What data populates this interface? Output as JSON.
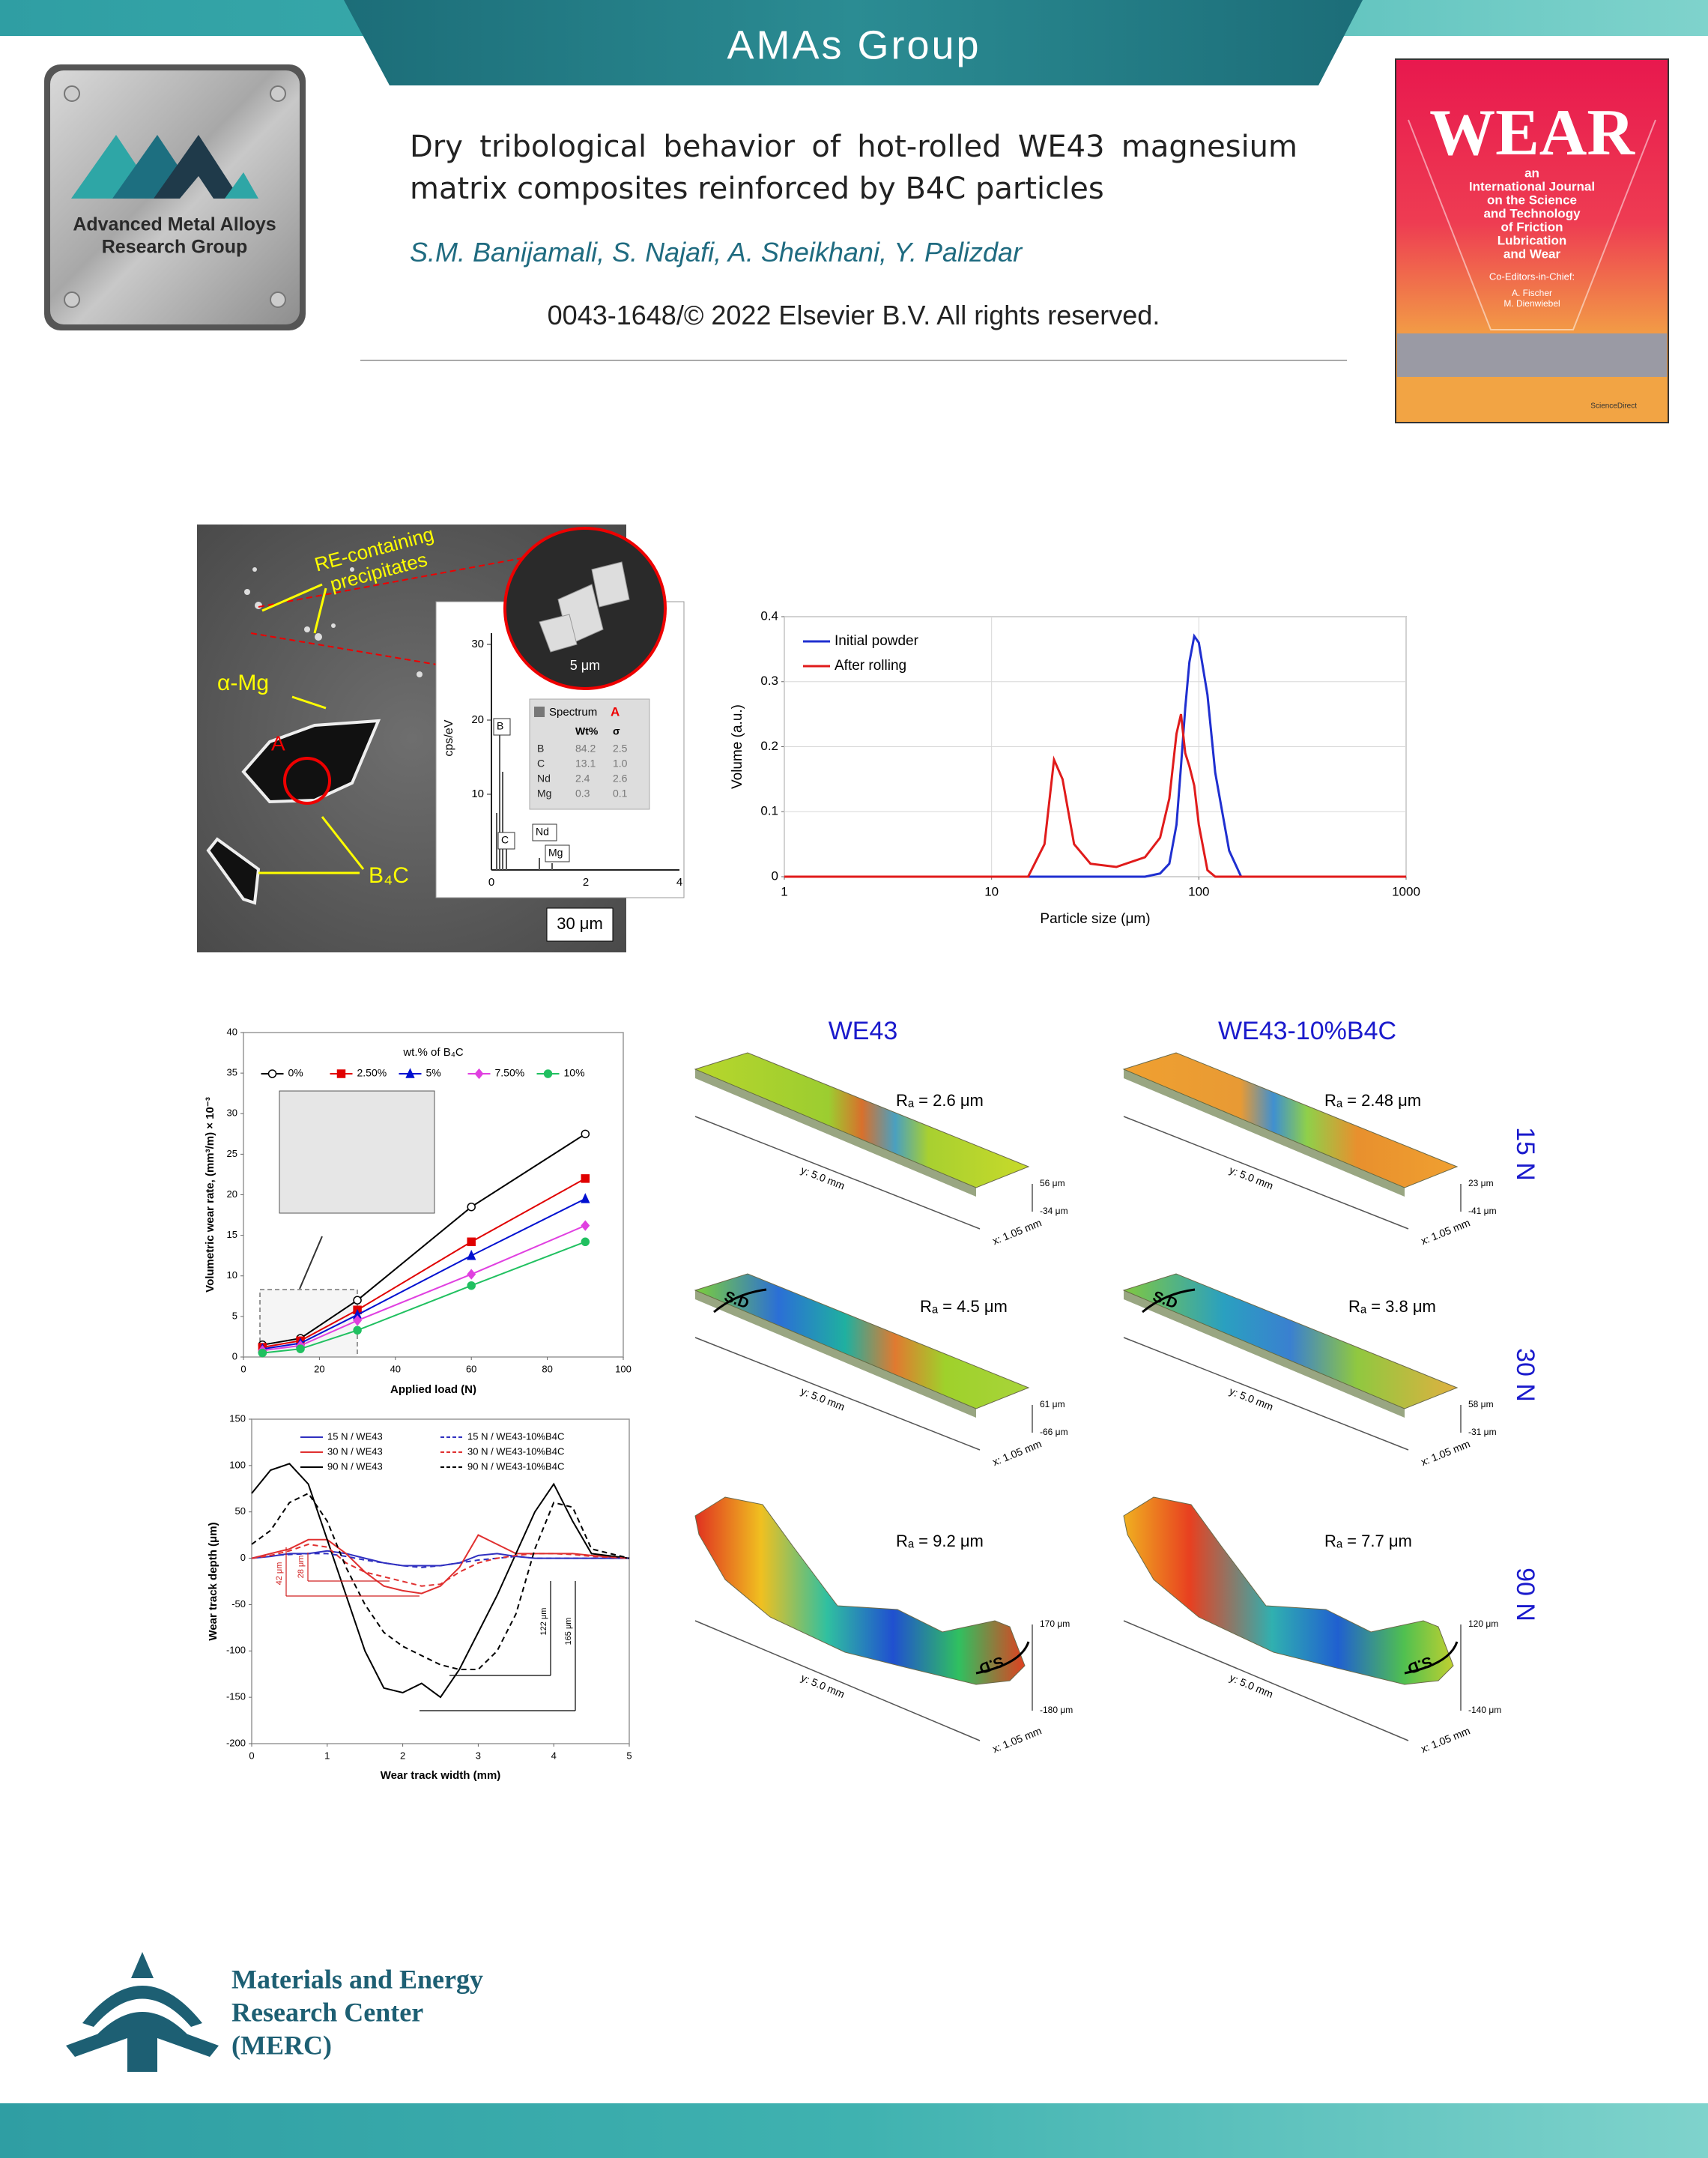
{
  "header": {
    "group": "AMAs Group"
  },
  "logo": {
    "lines": [
      "Advanced Metal Alloys",
      "Research Group"
    ]
  },
  "paper": {
    "title": "Dry tribological behavior of hot-rolled WE43 magnesium matrix composites reinforced by B4C particles",
    "authors": "S.M. Banijamali, S. Najafi, A. Sheikhani, Y. Palizdar",
    "copyright": "0043-1648/© 2022 Elsevier B.V. All rights reserved."
  },
  "cover": {
    "journal": "WEAR",
    "subtitle": [
      "an",
      "International Journal",
      "on the Science",
      "and Technology",
      "of Friction",
      "Lubrication",
      "and Wear"
    ],
    "editors_heading": "Co-Editors-in-Chief:",
    "editors": [
      "A. Fischer",
      "M. Dienwiebel"
    ],
    "publisher": "ScienceDirect"
  },
  "sem": {
    "precipitates": [
      "RE-containing",
      "precipitates"
    ],
    "matrix": "α-Mg",
    "point": "A",
    "particle": "B₄C",
    "scale": "30 μm",
    "inset_scale": "5 μm",
    "spectrum": {
      "y_label": "cps/eV",
      "yticks": [
        "10",
        "20",
        "30"
      ],
      "xticks": [
        "0",
        "2",
        "4"
      ],
      "peaks": [
        "B",
        "C",
        "Nd",
        "Mg"
      ],
      "table_title": "Spectrum",
      "table_point": "A",
      "table_header": [
        "Wt%",
        "σ"
      ],
      "rows": [
        [
          "B",
          "84.2",
          "2.5"
        ],
        [
          "C",
          "13.1",
          "1.0"
        ],
        [
          "Nd",
          "2.4",
          "2.6"
        ],
        [
          "Mg",
          "0.3",
          "0.1"
        ]
      ]
    }
  },
  "chart_data": [
    {
      "type": "line",
      "xscale": "log",
      "grid": true,
      "legend": "upper left",
      "legend_columns": 1,
      "x_label": "Particle size (μm)",
      "y_label": "Volume (a.u.)",
      "xlim": [
        1,
        1000
      ],
      "xticks": [
        1,
        10,
        100,
        1000
      ],
      "ylim": [
        0,
        0.4
      ],
      "yticks": [
        0,
        0.1,
        0.2,
        0.3,
        0.4
      ],
      "x": [
        1,
        15,
        18,
        20,
        22,
        25,
        30,
        40,
        55,
        65,
        72,
        78,
        82,
        86,
        90,
        95,
        100,
        110,
        120,
        140,
        160,
        1000
      ],
      "series": [
        {
          "name": "Initial powder",
          "color": "#1f2fd0",
          "style": "solid",
          "values": [
            0,
            0,
            0,
            0,
            0,
            0,
            0,
            0,
            0,
            0.005,
            0.02,
            0.08,
            0.17,
            0.26,
            0.33,
            0.37,
            0.36,
            0.28,
            0.16,
            0.04,
            0,
            0
          ]
        },
        {
          "name": "After rolling",
          "color": "#e01b1b",
          "style": "solid",
          "values": [
            0,
            0,
            0.05,
            0.18,
            0.15,
            0.05,
            0.02,
            0.015,
            0.03,
            0.06,
            0.12,
            0.22,
            0.25,
            0.19,
            0.17,
            0.14,
            0.08,
            0.01,
            0,
            0,
            0,
            0
          ]
        }
      ]
    },
    {
      "type": "line",
      "grid": false,
      "legend": "upper center",
      "legend_columns": 5,
      "legend_title": "wt.% of B₄C",
      "x_label": "Applied load (N)",
      "y_label": "Volumetric wear rate, (mm³/m) × 10⁻³",
      "xlim": [
        0,
        100
      ],
      "xticks": [
        0,
        20,
        40,
        60,
        80,
        100
      ],
      "ylim": [
        0,
        40
      ],
      "yticks": [
        0,
        5,
        10,
        15,
        20,
        25,
        30,
        35,
        40
      ],
      "x": [
        5,
        15,
        30,
        60,
        90
      ],
      "series": [
        {
          "name": "0%",
          "color": "#000000",
          "style": "solid",
          "marker": "circle-open",
          "values": [
            1.5,
            2.3,
            7,
            18.5,
            27.5
          ]
        },
        {
          "name": "2.50%",
          "color": "#e00000",
          "style": "solid",
          "marker": "square",
          "values": [
            1.2,
            2.0,
            5.8,
            14.2,
            22
          ]
        },
        {
          "name": "5%",
          "color": "#0010d0",
          "style": "solid",
          "marker": "triangle",
          "values": [
            1.0,
            1.7,
            5.2,
            12.5,
            19.5
          ]
        },
        {
          "name": "7.50%",
          "color": "#e040e0",
          "style": "solid",
          "marker": "diamond",
          "values": [
            0.8,
            1.4,
            4.5,
            10.2,
            16.2
          ]
        },
        {
          "name": "10%",
          "color": "#20c060",
          "style": "solid",
          "marker": "circle",
          "values": [
            0.5,
            1.0,
            3.3,
            8.8,
            14.2
          ]
        }
      ]
    },
    {
      "type": "line",
      "grid": false,
      "legend": "upper center",
      "legend_columns": 2,
      "x_label": "Wear track width (mm)",
      "y_label": "Wear track depth (μm)",
      "xlim": [
        0,
        5
      ],
      "xticks": [
        0,
        1,
        2,
        3,
        4,
        5
      ],
      "ylim": [
        -200,
        150
      ],
      "yticks": [
        -200,
        -150,
        -100,
        -50,
        0,
        50,
        100,
        150
      ],
      "x": [
        0,
        0.25,
        0.5,
        0.75,
        1,
        1.25,
        1.5,
        1.75,
        2,
        2.25,
        2.5,
        2.75,
        3,
        3.25,
        3.5,
        3.75,
        4,
        4.25,
        4.5,
        5
      ],
      "series": [
        {
          "name": "15 N / WE43",
          "color": "#3030c0",
          "style": "solid",
          "values": [
            0,
            2,
            5,
            5,
            8,
            5,
            0,
            -5,
            -8,
            -8,
            -8,
            -5,
            3,
            5,
            2,
            0,
            0,
            0,
            0,
            0
          ]
        },
        {
          "name": "30 N / WE43",
          "color": "#e03030",
          "style": "solid",
          "values": [
            0,
            5,
            10,
            20,
            20,
            5,
            -15,
            -30,
            -35,
            -38,
            -30,
            -10,
            25,
            15,
            5,
            5,
            5,
            5,
            3,
            0
          ]
        },
        {
          "name": "90 N / WE43",
          "color": "#000000",
          "style": "solid",
          "values": [
            70,
            95,
            102,
            80,
            20,
            -40,
            -100,
            -140,
            -145,
            -135,
            -150,
            -120,
            -80,
            -40,
            5,
            50,
            80,
            40,
            5,
            0
          ]
        },
        {
          "name": "15 N / WE43-10%B4C",
          "color": "#3030c0",
          "style": "dashed",
          "values": [
            0,
            3,
            4,
            5,
            5,
            2,
            -2,
            -5,
            -8,
            -10,
            -8,
            -5,
            -2,
            0,
            2,
            0,
            0,
            0,
            0,
            0
          ]
        },
        {
          "name": "30 N / WE43-10%B4C",
          "color": "#e03030",
          "style": "dashed",
          "values": [
            0,
            3,
            8,
            15,
            12,
            -5,
            -15,
            -20,
            -25,
            -30,
            -28,
            -15,
            -5,
            0,
            3,
            5,
            5,
            4,
            2,
            0
          ]
        },
        {
          "name": "90 N / WE43-10%B4C",
          "color": "#000000",
          "style": "dashed",
          "values": [
            15,
            30,
            60,
            70,
            40,
            -10,
            -50,
            -80,
            -95,
            -105,
            -115,
            -120,
            -120,
            -100,
            -60,
            10,
            60,
            55,
            10,
            0
          ]
        }
      ],
      "annotations": [
        {
          "text": "42 μm",
          "color": "#d02020"
        },
        {
          "text": "28 μm",
          "color": "#d02020"
        },
        {
          "text": "122 μm",
          "color": "#000000"
        },
        {
          "text": "165 μm",
          "color": "#000000"
        }
      ]
    }
  ],
  "surface_maps": {
    "columns": [
      "WE43",
      "WE43-10%B4C"
    ],
    "rows": [
      "15 N",
      "30 N",
      "90 N"
    ],
    "y_label": "y: 5.0 mm",
    "x_label": "x: 1.05 mm",
    "direction": "S.D",
    "maps": [
      [
        {
          "ra": "Rₐ = 2.6 μm",
          "top": "56 μm",
          "bottom": "-34 μm"
        },
        {
          "ra": "Rₐ = 2.48 μm",
          "top": "23 μm",
          "bottom": "-41 μm"
        }
      ],
      [
        {
          "ra": "Rₐ = 4.5 μm",
          "top": "61 μm",
          "bottom": "-66 μm"
        },
        {
          "ra": "Rₐ = 3.8 μm",
          "top": "58 μm",
          "bottom": "-31 μm"
        }
      ],
      [
        {
          "ra": "Rₐ = 9.2 μm",
          "top": "170 μm",
          "bottom": "-180 μm"
        },
        {
          "ra": "Rₐ = 7.7 μm",
          "top": "120 μm",
          "bottom": "-140 μm"
        }
      ]
    ]
  },
  "merc": {
    "lines": [
      "Materials and Energy",
      "Research Center",
      "(MERC)"
    ]
  }
}
